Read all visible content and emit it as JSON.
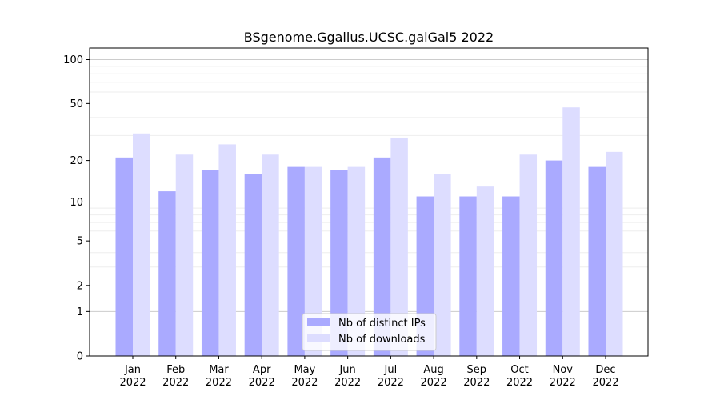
{
  "chart_data": {
    "type": "bar",
    "title": "BSgenome.Ggallus.UCSC.galGal5 2022",
    "xlabel": "",
    "ylabel": "",
    "y_scale": "log(1+y)",
    "ylim": [
      0,
      120
    ],
    "y_ticks": [
      0,
      1,
      2,
      5,
      10,
      20,
      50,
      100
    ],
    "y_tick_labels": [
      "0",
      "1",
      "2",
      "5",
      "10",
      "20",
      "50",
      "100"
    ],
    "categories": [
      "Jan\n2022",
      "Feb\n2022",
      "Mar\n2022",
      "Apr\n2022",
      "May\n2022",
      "Jun\n2022",
      "Jul\n2022",
      "Aug\n2022",
      "Sep\n2022",
      "Oct\n2022",
      "Nov\n2022",
      "Dec\n2022"
    ],
    "series": [
      {
        "name": "Nb of distinct IPs",
        "color": "#aaaaff",
        "values": [
          21,
          12,
          17,
          16,
          18,
          17,
          21,
          11,
          11,
          11,
          20,
          18
        ]
      },
      {
        "name": "Nb of downloads",
        "color": "#ddddff",
        "values": [
          31,
          22,
          26,
          22,
          18,
          18,
          29,
          16,
          13,
          22,
          47,
          23
        ]
      }
    ],
    "grid": true,
    "legend": "bottom-center"
  }
}
